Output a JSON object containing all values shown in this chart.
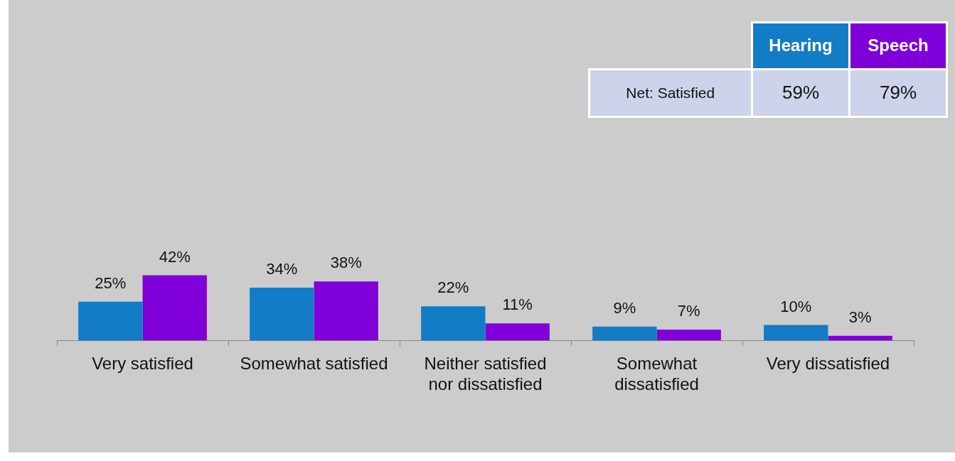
{
  "chart_data": {
    "type": "bar",
    "categories": [
      "Very satisfied",
      "Somewhat satisfied",
      "Neither satisfied nor dissatisfied",
      "Somewhat dissatisfied",
      "Very dissatisfied"
    ],
    "series": [
      {
        "name": "Hearing",
        "color": "#127cc6",
        "values": [
          25,
          34,
          22,
          9,
          10
        ],
        "value_labels": [
          "25%",
          "34%",
          "22%",
          "9%",
          "10%"
        ]
      },
      {
        "name": "Speech",
        "color": "#7f00d9",
        "values": [
          42,
          38,
          11,
          7,
          3
        ],
        "value_labels": [
          "42%",
          "38%",
          "11%",
          "7%",
          "3%"
        ]
      }
    ],
    "legend": "top right",
    "annotations": [
      "Net: Satisfied",
      "59%",
      "79%"
    ]
  }
}
